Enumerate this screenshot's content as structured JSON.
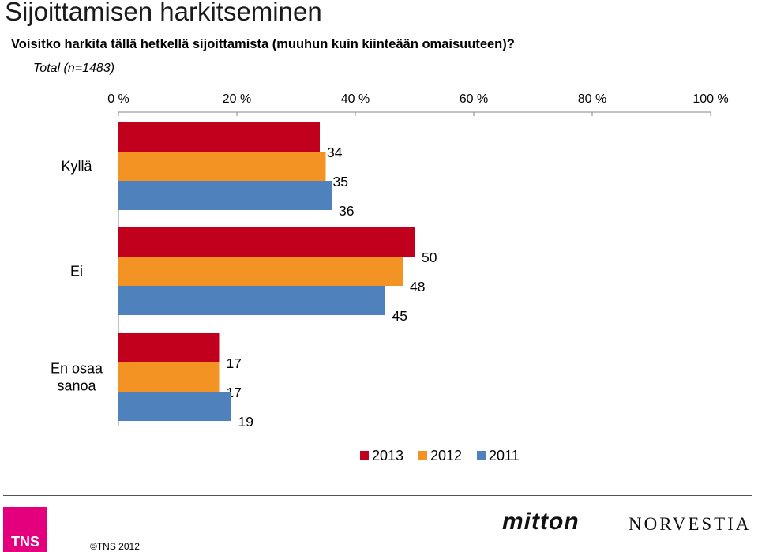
{
  "page": {
    "title": "Sijoittamisen harkitseminen",
    "question": "Voisitko harkita tällä hetkellä sijoittamista (muuhun kuin kiinteään omaisuuteen)?",
    "base": "Total (n=1483)"
  },
  "chart_data": {
    "type": "bar",
    "orientation": "horizontal",
    "categories": [
      "Kyllä",
      "Ei",
      "En osaa sanoa"
    ],
    "category_lines": [
      [
        "Kyllä"
      ],
      [
        "Ei"
      ],
      [
        "En osaa",
        "sanoa"
      ]
    ],
    "series": [
      {
        "name": "2013",
        "color": "#c0001c",
        "values": [
          34,
          50,
          17
        ]
      },
      {
        "name": "2012",
        "color": "#f39323",
        "values": [
          35,
          48,
          17
        ]
      },
      {
        "name": "2011",
        "color": "#4f81bd",
        "values": [
          36,
          45,
          19
        ]
      }
    ],
    "xticks": [
      "0 %",
      "20 %",
      "40 %",
      "60 %",
      "80 %",
      "100 %"
    ],
    "xlim": [
      0,
      100
    ],
    "axis_position": "top",
    "legend": "bottom-right",
    "grid": false
  },
  "footer": {
    "logo_text": "TNS",
    "copyright": "©TNS 2012",
    "brand_1": "mitton",
    "brand_2": "NORVESTIA"
  }
}
